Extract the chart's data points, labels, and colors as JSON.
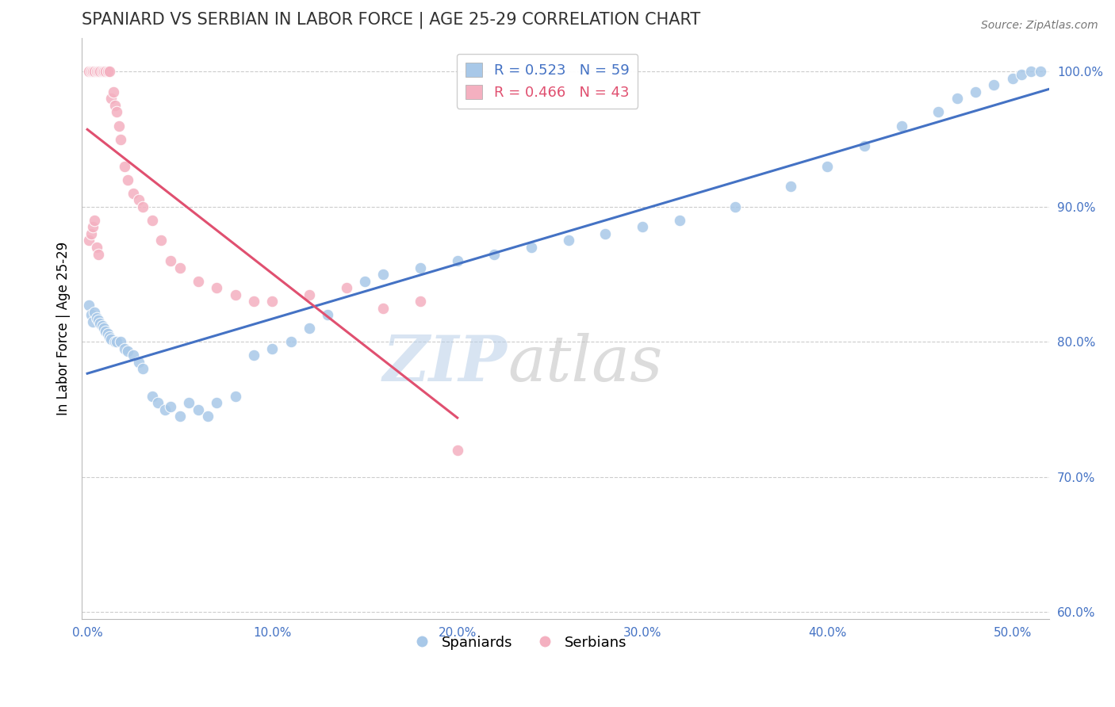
{
  "title": "SPANIARD VS SERBIAN IN LABOR FORCE | AGE 25-29 CORRELATION CHART",
  "source": "Source: ZipAtlas.com",
  "ylabel": "In Labor Force | Age 25-29",
  "xlim": [
    -0.003,
    0.52
  ],
  "ylim": [
    0.595,
    1.025
  ],
  "xticks": [
    0.0,
    0.1,
    0.2,
    0.3,
    0.4,
    0.5
  ],
  "xticklabels": [
    "0.0%",
    "10.0%",
    "20.0%",
    "30.0%",
    "40.0%",
    "50.0%"
  ],
  "yticks": [
    0.6,
    0.7,
    0.8,
    0.9,
    1.0
  ],
  "yticklabels": [
    "60.0%",
    "70.0%",
    "80.0%",
    "90.0%",
    "100.0%"
  ],
  "blue_color": "#a8c8e8",
  "pink_color": "#f4b0c0",
  "blue_line_color": "#4472C4",
  "pink_line_color": "#e05070",
  "legend_blue_label_r": "R = 0.523",
  "legend_blue_label_n": "N = 59",
  "legend_pink_label_r": "R = 0.466",
  "legend_pink_label_n": "N = 43",
  "legend_series_blue": "Spaniards",
  "legend_series_pink": "Serbians",
  "axis_tick_color": "#4472C4",
  "grid_color": "#cccccc",
  "title_color": "#333333",
  "blue_x": [
    0.001,
    0.002,
    0.003,
    0.004,
    0.005,
    0.006,
    0.007,
    0.008,
    0.009,
    0.01,
    0.011,
    0.012,
    0.013,
    0.015,
    0.016,
    0.018,
    0.02,
    0.022,
    0.025,
    0.028,
    0.03,
    0.035,
    0.038,
    0.042,
    0.045,
    0.05,
    0.055,
    0.06,
    0.065,
    0.07,
    0.08,
    0.09,
    0.1,
    0.11,
    0.12,
    0.13,
    0.15,
    0.16,
    0.18,
    0.2,
    0.22,
    0.24,
    0.26,
    0.28,
    0.3,
    0.32,
    0.35,
    0.38,
    0.4,
    0.42,
    0.44,
    0.46,
    0.47,
    0.48,
    0.49,
    0.5,
    0.505,
    0.51,
    0.515
  ],
  "blue_y": [
    0.827,
    0.82,
    0.815,
    0.822,
    0.818,
    0.816,
    0.814,
    0.812,
    0.81,
    0.808,
    0.806,
    0.804,
    0.802,
    0.8,
    0.8,
    0.8,
    0.795,
    0.793,
    0.79,
    0.785,
    0.78,
    0.76,
    0.755,
    0.75,
    0.752,
    0.745,
    0.755,
    0.75,
    0.745,
    0.755,
    0.76,
    0.79,
    0.795,
    0.8,
    0.81,
    0.82,
    0.845,
    0.85,
    0.855,
    0.86,
    0.865,
    0.87,
    0.875,
    0.88,
    0.885,
    0.89,
    0.9,
    0.915,
    0.93,
    0.945,
    0.96,
    0.97,
    0.98,
    0.985,
    0.99,
    0.995,
    0.998,
    1.0,
    1.0
  ],
  "pink_x": [
    0.001,
    0.002,
    0.003,
    0.004,
    0.005,
    0.006,
    0.007,
    0.008,
    0.009,
    0.01,
    0.011,
    0.012,
    0.013,
    0.014,
    0.015,
    0.016,
    0.017,
    0.018,
    0.02,
    0.022,
    0.025,
    0.028,
    0.03,
    0.035,
    0.04,
    0.045,
    0.05,
    0.06,
    0.07,
    0.08,
    0.09,
    0.1,
    0.12,
    0.14,
    0.16,
    0.18,
    0.2,
    0.001,
    0.002,
    0.003,
    0.004,
    0.005,
    0.006
  ],
  "pink_y": [
    1.0,
    1.0,
    1.0,
    1.0,
    1.0,
    1.0,
    1.0,
    1.0,
    1.0,
    1.0,
    1.0,
    1.0,
    0.98,
    0.985,
    0.975,
    0.97,
    0.96,
    0.95,
    0.93,
    0.92,
    0.91,
    0.905,
    0.9,
    0.89,
    0.875,
    0.86,
    0.855,
    0.845,
    0.84,
    0.835,
    0.83,
    0.83,
    0.835,
    0.84,
    0.825,
    0.83,
    0.72,
    0.875,
    0.88,
    0.885,
    0.89,
    0.87,
    0.865
  ]
}
